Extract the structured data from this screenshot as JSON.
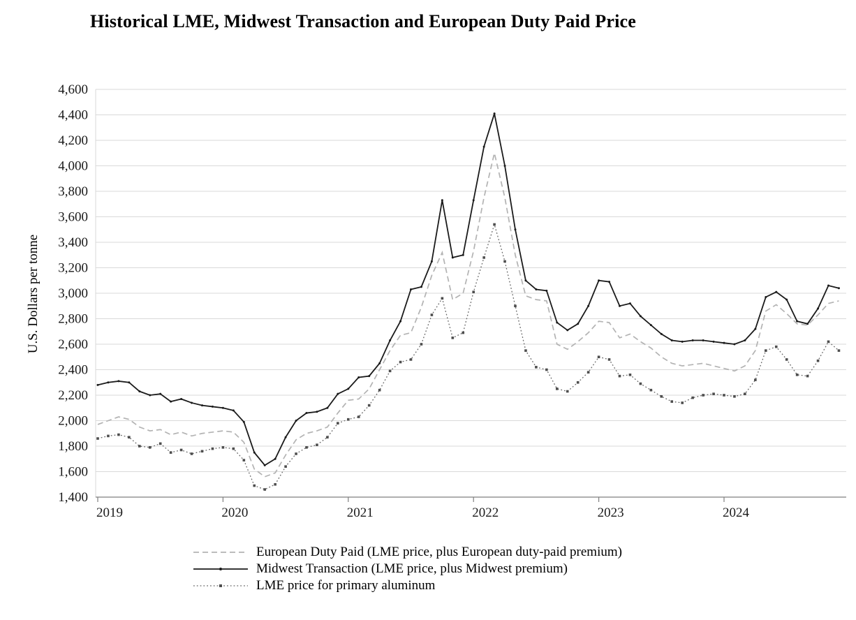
{
  "chart": {
    "title": "Historical LME, Midwest Transaction and European Duty Paid Price",
    "ylabel": "U.S. Dollars per tonne"
  },
  "chart_data": {
    "type": "line",
    "title": "Historical LME, Midwest Transaction and European Duty Paid Price",
    "xlabel": "",
    "ylabel": "U.S. Dollars per tonne",
    "ylim": [
      1400,
      4600
    ],
    "ytick_step": 200,
    "grid": "horizontal",
    "legend_position": "bottom-left",
    "x_unit": "month",
    "x_start": "2019-01",
    "x_tick_labels": [
      "2019",
      "2020",
      "2021",
      "2022",
      "2023",
      "2024"
    ],
    "axis_color": "#7f7f7f",
    "gridline_color": "#d9d9d9",
    "series": [
      {
        "name": "European Duty Paid (LME price, plus European duty-paid premium)",
        "style": "dashed",
        "color": "#b3b3b3",
        "values": [
          1970,
          2000,
          2030,
          2010,
          1950,
          1920,
          1930,
          1890,
          1910,
          1880,
          1900,
          1910,
          1920,
          1910,
          1830,
          1620,
          1560,
          1590,
          1730,
          1850,
          1900,
          1920,
          1950,
          2060,
          2160,
          2170,
          2250,
          2400,
          2550,
          2670,
          2690,
          2890,
          3140,
          3320,
          2950,
          3000,
          3330,
          3750,
          4100,
          3750,
          3300,
          2980,
          2950,
          2940,
          2600,
          2560,
          2620,
          2690,
          2780,
          2770,
          2650,
          2680,
          2620,
          2570,
          2500,
          2450,
          2430,
          2440,
          2450,
          2430,
          2410,
          2390,
          2430,
          2550,
          2860,
          2910,
          2840,
          2760,
          2750,
          2830,
          2920,
          2940
        ]
      },
      {
        "name": "Midwest Transaction (LME price, plus Midwest premium)",
        "style": "solid-dot",
        "color": "#1a1a1a",
        "values": [
          2280,
          2300,
          2310,
          2300,
          2230,
          2200,
          2210,
          2150,
          2170,
          2140,
          2120,
          2110,
          2100,
          2080,
          1990,
          1750,
          1650,
          1700,
          1870,
          2000,
          2060,
          2070,
          2100,
          2210,
          2250,
          2340,
          2350,
          2450,
          2630,
          2780,
          3030,
          3050,
          3250,
          3730,
          3280,
          3300,
          3730,
          4150,
          4410,
          4000,
          3500,
          3100,
          3030,
          3020,
          2770,
          2710,
          2760,
          2900,
          3100,
          3090,
          2900,
          2920,
          2820,
          2750,
          2680,
          2630,
          2620,
          2630,
          2630,
          2620,
          2610,
          2600,
          2630,
          2720,
          2970,
          3010,
          2950,
          2780,
          2760,
          2880,
          3060,
          3040
        ]
      },
      {
        "name": "LME price for primary aluminum",
        "style": "dotted-square",
        "color": "#666666",
        "marker_color": "#4d4d4d",
        "values": [
          1860,
          1880,
          1890,
          1870,
          1800,
          1790,
          1820,
          1750,
          1770,
          1740,
          1760,
          1780,
          1790,
          1780,
          1690,
          1490,
          1460,
          1500,
          1640,
          1740,
          1790,
          1810,
          1870,
          1980,
          2010,
          2030,
          2120,
          2240,
          2390,
          2460,
          2480,
          2600,
          2830,
          2960,
          2650,
          2690,
          3010,
          3280,
          3540,
          3250,
          2900,
          2550,
          2420,
          2400,
          2250,
          2230,
          2300,
          2380,
          2500,
          2480,
          2350,
          2360,
          2290,
          2240,
          2190,
          2150,
          2140,
          2180,
          2200,
          2210,
          2200,
          2190,
          2210,
          2320,
          2550,
          2580,
          2480,
          2360,
          2350,
          2470,
          2620,
          2550
        ]
      }
    ]
  }
}
